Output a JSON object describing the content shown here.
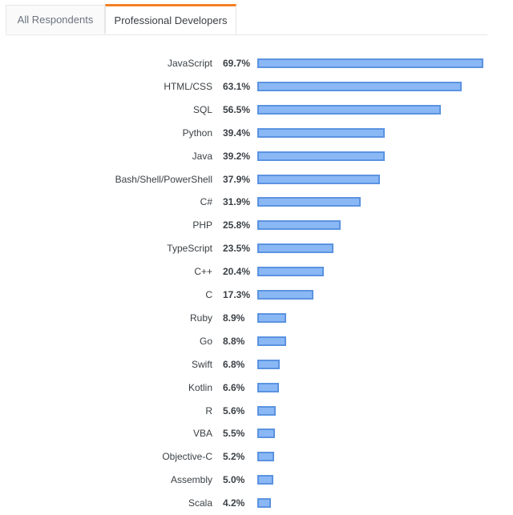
{
  "tabs": [
    {
      "label": "All Respondents",
      "active": false
    },
    {
      "label": "Professional Developers",
      "active": true
    }
  ],
  "colors": {
    "bar_fill": "#8ab8f5",
    "bar_border": "#5b93e0",
    "tab_accent": "#f48024"
  },
  "chart_data": {
    "type": "bar",
    "orientation": "horizontal",
    "title": "",
    "xlabel": "",
    "ylabel": "",
    "unit": "%",
    "categories": [
      "JavaScript",
      "HTML/CSS",
      "SQL",
      "Python",
      "Java",
      "Bash/Shell/PowerShell",
      "C#",
      "PHP",
      "TypeScript",
      "C++",
      "C",
      "Ruby",
      "Go",
      "Swift",
      "Kotlin",
      "R",
      "VBA",
      "Objective-C",
      "Assembly",
      "Scala"
    ],
    "values": [
      69.7,
      63.1,
      56.5,
      39.4,
      39.2,
      37.9,
      31.9,
      25.8,
      23.5,
      20.4,
      17.3,
      8.9,
      8.8,
      6.8,
      6.6,
      5.6,
      5.5,
      5.2,
      5.0,
      4.2
    ],
    "labels": [
      "69.7%",
      "63.1%",
      "56.5%",
      "39.4%",
      "39.2%",
      "37.9%",
      "31.9%",
      "25.8%",
      "23.5%",
      "20.4%",
      "17.3%",
      "8.9%",
      "8.8%",
      "6.8%",
      "6.6%",
      "5.6%",
      "5.5%",
      "5.2%",
      "5.0%",
      "4.2%"
    ],
    "grid": false,
    "legend": null
  }
}
